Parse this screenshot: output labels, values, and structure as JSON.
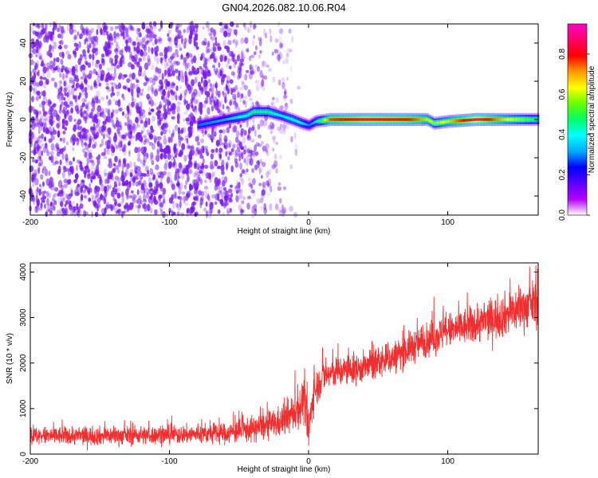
{
  "title": "GN04.2026.082.10.06.R04",
  "colors": {
    "snr_line": "#f03030",
    "spectrogram_noise": "#7a1cf0",
    "colorbar": [
      "#ffffff",
      "#b400ff",
      "#5a00ff",
      "#0000ff",
      "#00aaff",
      "#00ffff",
      "#00ff66",
      "#66ff00",
      "#ffff00",
      "#ff9900",
      "#ff0000",
      "#ff0066",
      "#ff00cc"
    ]
  },
  "chart_data": [
    {
      "type": "heatmap",
      "name": "spectrogram",
      "xlabel": "Height of straight line (km)",
      "ylabel": "Frequency (Hz)",
      "xlim": [
        -200,
        165
      ],
      "ylim": [
        -50,
        50
      ],
      "x_ticks": [
        -200,
        -100,
        0,
        100
      ],
      "y_ticks": [
        -40,
        -20,
        0,
        20,
        40
      ],
      "signal_trace": {
        "x": [
          -80,
          -60,
          -45,
          -40,
          -30,
          -20,
          -12,
          -5,
          0,
          5,
          15,
          40,
          70,
          85,
          90,
          100,
          120,
          140,
          165
        ],
        "freq": [
          -3,
          0,
          2,
          4,
          4,
          2,
          0,
          -2,
          -3,
          -1,
          0,
          0,
          0,
          0,
          -2,
          -1,
          0,
          0,
          0
        ],
        "peak_amplitude": [
          0.3,
          0.35,
          0.45,
          0.5,
          0.5,
          0.4,
          0.45,
          0.4,
          0.3,
          0.4,
          0.8,
          0.9,
          0.85,
          0.7,
          0.6,
          0.7,
          0.95,
          0.7,
          0.5
        ]
      },
      "noise_region": {
        "x_range": [
          -200,
          -5
        ],
        "fade_start": -60
      },
      "colorbar": {
        "label": "Normalized spectral amplitude",
        "range": [
          0,
          0.95
        ],
        "ticks": [
          0.0,
          0.2,
          0.4,
          0.6,
          0.8
        ]
      }
    },
    {
      "type": "line",
      "name": "snr",
      "xlabel": "Height of straight line (km)",
      "ylabel": "SNR (10 * v/v)",
      "xlim": [
        -200,
        165
      ],
      "ylim": [
        0,
        4200
      ],
      "x_ticks": [
        -200,
        -100,
        0,
        100
      ],
      "y_ticks": [
        0,
        1000,
        2000,
        3000,
        4000
      ],
      "envelope": {
        "x": [
          -200,
          -150,
          -100,
          -60,
          -40,
          -20,
          -10,
          -3,
          0,
          3,
          10,
          20,
          40,
          60,
          80,
          100,
          120,
          140,
          165
        ],
        "mean": [
          400,
          400,
          420,
          450,
          550,
          700,
          900,
          1200,
          400,
          1300,
          1700,
          1800,
          1900,
          2100,
          2450,
          2700,
          2850,
          3050,
          3350
        ],
        "spread": [
          180,
          180,
          180,
          200,
          250,
          300,
          350,
          450,
          400,
          400,
          300,
          300,
          300,
          320,
          330,
          350,
          380,
          420,
          450
        ]
      }
    }
  ],
  "heatmap_ticklabels": [
    "-200",
    "-100",
    "0",
    "100"
  ],
  "heatmap_yticklabels": [
    "-40",
    "-20",
    "0",
    "20",
    "40"
  ],
  "snr_ticklabels": [
    "-200",
    "-100",
    "0",
    "100"
  ],
  "snr_yticklabels": [
    "0",
    "1000",
    "2000",
    "3000",
    "4000"
  ],
  "colorbar_ticklabels": [
    "0.0",
    "0.2",
    "0.4",
    "0.6",
    "0.8"
  ]
}
